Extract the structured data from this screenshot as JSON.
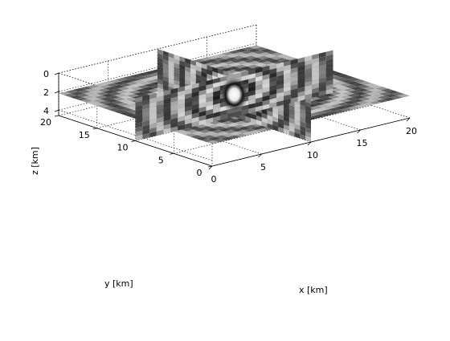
{
  "chart_data": {
    "type": "3d-slice",
    "title": "",
    "xlabel": "x [km]",
    "ylabel": "y [km]",
    "zlabel": "z [km]",
    "xlim": [
      0,
      20
    ],
    "ylim": [
      0,
      20
    ],
    "zlim": [
      0,
      4.6
    ],
    "z_direction": "reversed",
    "xticks": [
      0,
      5,
      10,
      15,
      20
    ],
    "yticks": [
      0,
      5,
      10,
      15,
      20
    ],
    "zticks": [
      0,
      2,
      4
    ],
    "xtick_labels": [
      "0",
      "5",
      "10",
      "15",
      "20"
    ],
    "ytick_labels": [
      "0",
      "5",
      "10",
      "15",
      "20"
    ],
    "ztick_labels": [
      "0",
      "2",
      "4"
    ],
    "grid": true,
    "colormap": "gray",
    "slices": [
      {
        "name": "horizontal slice",
        "plane": "z",
        "value": 2.2
      },
      {
        "name": "vertical slice x",
        "plane": "x",
        "value": 10
      },
      {
        "name": "vertical slice y",
        "plane": "y",
        "value": 10
      }
    ],
    "source_center": {
      "x": 10,
      "y": 10,
      "z": 2
    }
  }
}
